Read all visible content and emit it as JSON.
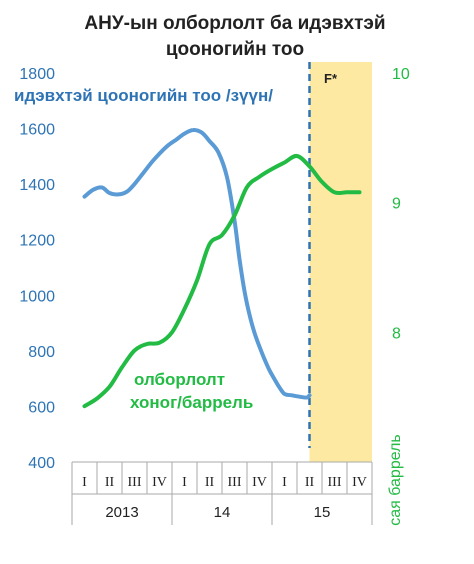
{
  "chart_data": {
    "type": "line",
    "title": [
      "АНУ-ын олборлолт ба идэвхтэй",
      "цооногийн тоо"
    ],
    "categories": [
      "I",
      "II",
      "III",
      "IV",
      "I",
      "II",
      "III",
      "IV",
      "I",
      "II",
      "III",
      "IV"
    ],
    "year_groups": [
      "2013",
      "14",
      "15"
    ],
    "forecast_label": "F*",
    "left_axis": {
      "ylim": [
        400,
        1800
      ],
      "ticks": [
        400,
        600,
        800,
        1000,
        1200,
        1400,
        1600,
        1800
      ]
    },
    "right_axis": {
      "ylim": [
        7,
        10
      ],
      "ticks": [
        8,
        9,
        10
      ],
      "unit_label": "сая баррель"
    },
    "series": [
      {
        "name": "идэвхтэй цооногийн тоо /зүүн/",
        "axis": "left",
        "color": "#5b9bd5",
        "x": [
          0,
          0.35,
          0.7,
          1,
          1.35,
          1.7,
          2,
          2.35,
          2.7,
          3,
          3.35,
          3.7,
          4,
          4.35,
          4.7,
          5,
          5.35,
          5.7,
          6,
          6.2,
          6.4,
          6.6,
          6.8,
          7,
          7.2,
          7.4,
          7.6,
          7.8,
          8,
          8.3,
          8.6,
          8.9,
          9
        ],
        "values": [
          1355,
          1380,
          1388,
          1368,
          1363,
          1373,
          1400,
          1440,
          1480,
          1510,
          1540,
          1562,
          1582,
          1595,
          1585,
          1555,
          1515,
          1425,
          1270,
          1130,
          1015,
          930,
          865,
          815,
          770,
          730,
          698,
          668,
          645,
          640,
          635,
          632,
          640
        ]
      },
      {
        "name": "олборлолт хоног/баррель",
        "axis": "right",
        "color": "#22bb44",
        "x": [
          0,
          0.5,
          1,
          1.5,
          2,
          2.5,
          3,
          3.5,
          4,
          4.5,
          5,
          5.5,
          6,
          6.5,
          7,
          7.5,
          8,
          8.5,
          9,
          9.5,
          10,
          10.5,
          11
        ],
        "values": [
          7.43,
          7.49,
          7.58,
          7.73,
          7.86,
          7.91,
          7.92,
          8.0,
          8.18,
          8.4,
          8.68,
          8.75,
          8.9,
          9.12,
          9.2,
          9.26,
          9.31,
          9.36,
          9.28,
          9.16,
          9.08,
          9.08,
          9.08
        ]
      }
    ],
    "series_labels": {
      "wells": "идэвхтэй цооногийн тоо /зүүн/",
      "production": [
        "олборлолт",
        "хоног/баррель"
      ]
    },
    "colors": {
      "wells": "#5b9bd5",
      "wells_axis": "#2e74b5",
      "production": "#22bb44",
      "forecast_fill": "#fde9a2",
      "forecast_line": "#2e74b5",
      "axis": "#aaaaaa"
    }
  }
}
